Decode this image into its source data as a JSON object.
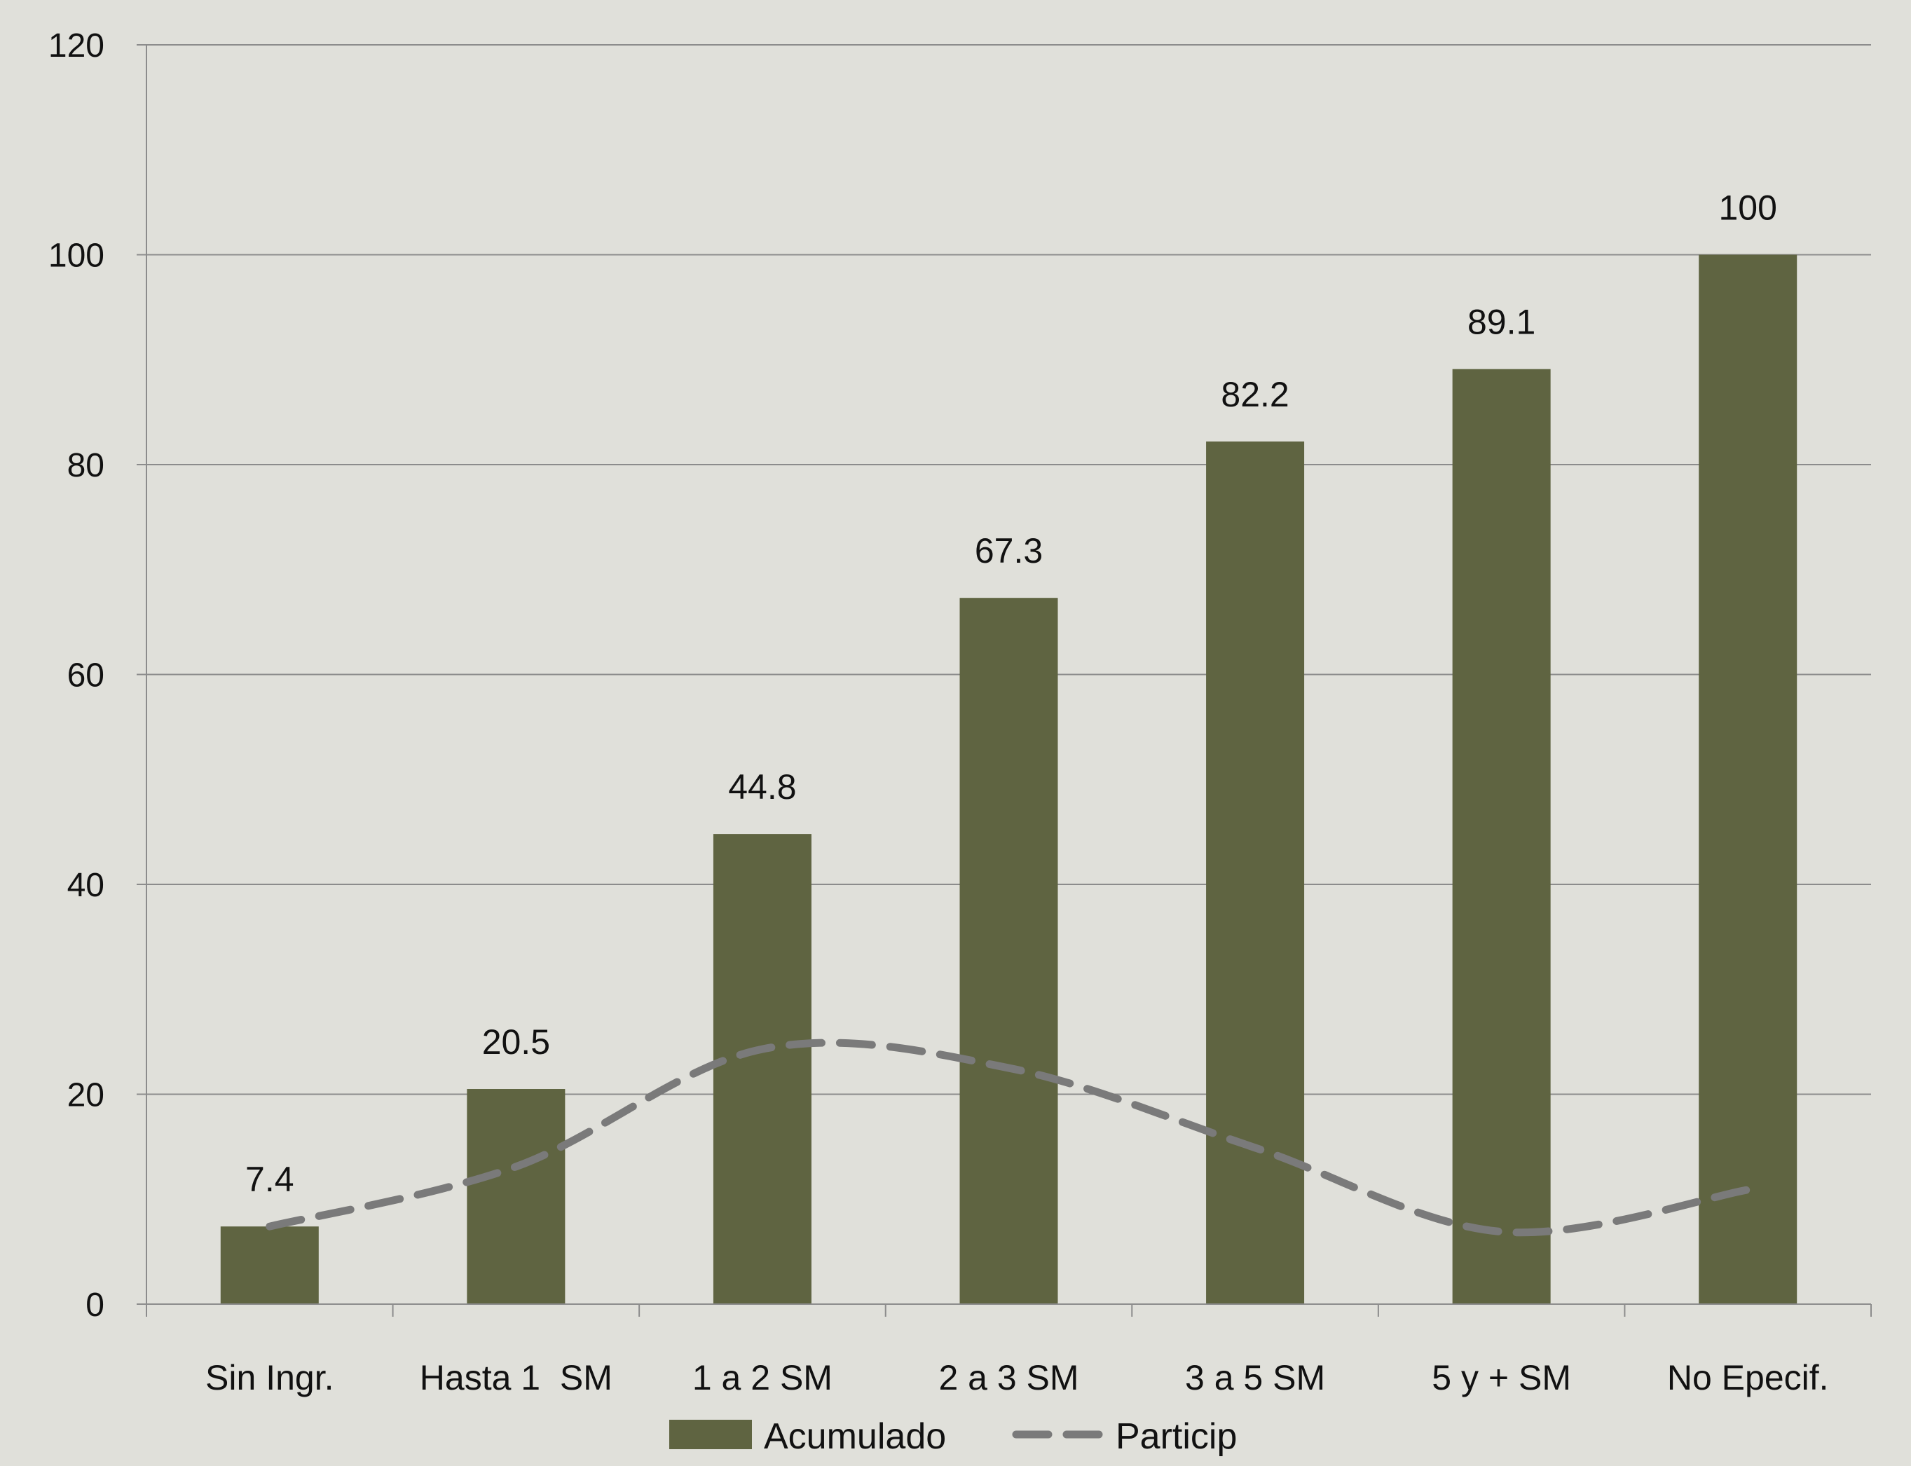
{
  "chart_data": {
    "type": "bar",
    "categories": [
      "Sin Ingr.",
      "Hasta 1  SM",
      "1 a 2 SM",
      "2 a 3 SM",
      "3 a 5 SM",
      "5 y + SM",
      "No Epecif."
    ],
    "series": [
      {
        "name": "Acumulado",
        "type": "bar",
        "values": [
          7.4,
          20.5,
          44.8,
          67.3,
          82.2,
          89.1,
          100
        ],
        "data_labels": [
          "7.4",
          "20.5",
          "44.8",
          "67.3",
          "82.2",
          "89.1",
          "100"
        ],
        "color": "#5f6441"
      },
      {
        "name": "Particip",
        "type": "line",
        "style": "dashed",
        "values": [
          7.4,
          13.1,
          24.3,
          22.5,
          14.9,
          6.9,
          10.9
        ],
        "color": "#7a7a7a"
      }
    ],
    "ylim": [
      0,
      120
    ],
    "yticks": [
      0,
      20,
      40,
      60,
      80,
      100,
      120
    ],
    "ytick_labels": [
      "0",
      "20",
      "40",
      "60",
      "80",
      "100",
      "120"
    ],
    "grid": true,
    "legend_position": "bottom",
    "xlabel": "",
    "ylabel": "",
    "title": "",
    "background_color": "#e0e0da",
    "grid_color": "#8c8c8c"
  }
}
